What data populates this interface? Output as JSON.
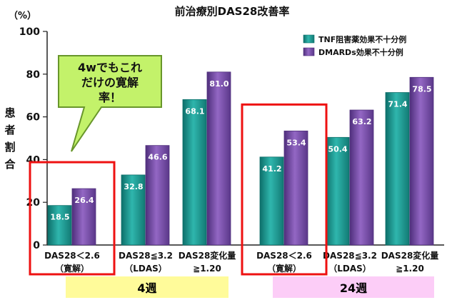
{
  "chart_data": {
    "type": "bar",
    "title": "前治療別DAS28改善率",
    "unit_label": "（%）",
    "ylabel": "患者割合",
    "ylim": [
      0,
      100
    ],
    "yticks": [
      "0",
      "20",
      "40",
      "60",
      "80",
      "100"
    ],
    "grid": false,
    "legend_position": "top-right",
    "categories": [
      [
        "DAS28＜2.6",
        "（寛解）"
      ],
      [
        "DAS28≦3.2",
        "（LDAS）"
      ],
      [
        "DAS28変化量",
        "≧1.20"
      ],
      [
        "DAS28＜2.6",
        "（寛解）"
      ],
      [
        "DAS28≦3.2",
        "（LDAS）"
      ],
      [
        "DAS28変化量",
        "≧1.20"
      ]
    ],
    "groups": [
      {
        "label": "4週",
        "categories": [
          0,
          1,
          2
        ],
        "color": "#fffb9a"
      },
      {
        "label": "24週",
        "categories": [
          3,
          4,
          5
        ],
        "color": "#fccdf7"
      }
    ],
    "series": [
      {
        "name": "TNF阻害薬効果不十分例",
        "color": "#1a9c95",
        "values": [
          18.5,
          32.8,
          68.1,
          41.2,
          50.4,
          71.4
        ],
        "labels": [
          "18.5",
          "32.8",
          "68.1",
          "41.2",
          "50.4",
          "71.4"
        ]
      },
      {
        "name": "DMARDs効果不十分例",
        "color": "#7b4ea8",
        "values": [
          26.4,
          46.6,
          81.0,
          53.4,
          63.2,
          78.5
        ],
        "labels": [
          "26.4",
          "46.6",
          "81.0",
          "53.4",
          "63.2",
          "78.5"
        ]
      }
    ],
    "annotations": {
      "callout_lines": [
        "4wでもこれ",
        "だけの寛解",
        "率！"
      ],
      "highlighted_categories": [
        0,
        3
      ]
    }
  }
}
